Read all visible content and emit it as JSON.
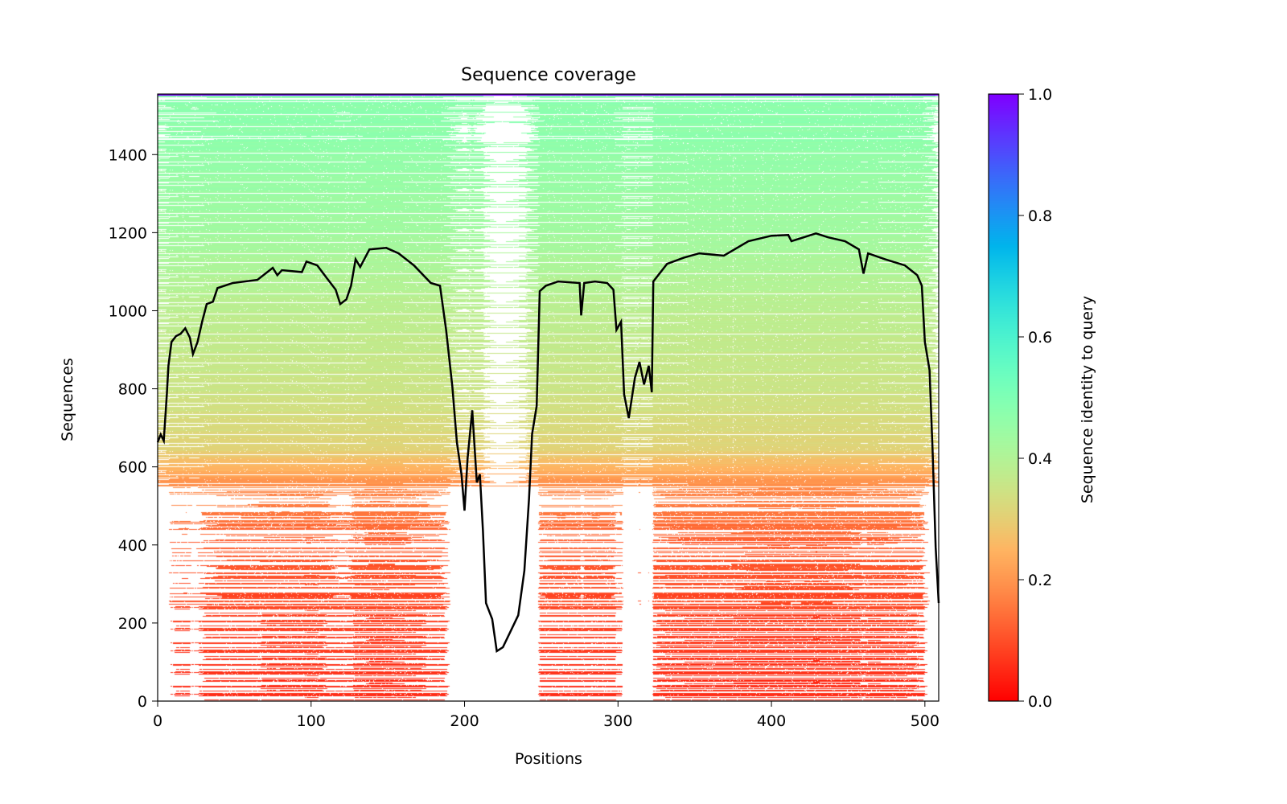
{
  "chart_data": {
    "type": "heatmap",
    "title": "Sequence coverage",
    "xlabel": "Positions",
    "ylabel": "Sequences",
    "xlim": [
      0,
      509
    ],
    "ylim": [
      0,
      1555
    ],
    "xticks": [
      "0",
      "100",
      "200",
      "300",
      "400",
      "500"
    ],
    "yticks": [
      "0",
      "200",
      "400",
      "600",
      "800",
      "1000",
      "1200",
      "1400"
    ],
    "colorbar": {
      "label": "Sequence identity to query",
      "colormap": "rainbow_r",
      "range": [
        0,
        1
      ],
      "ticks": [
        "0.0",
        "0.2",
        "0.4",
        "0.6",
        "0.8",
        "1.0"
      ]
    },
    "identity_profile": {
      "sequence_index": [
        0,
        200,
        400,
        550,
        600,
        650,
        800,
        1000,
        1200,
        1400,
        1554
      ],
      "identity": [
        0.05,
        0.08,
        0.12,
        0.18,
        0.25,
        0.31,
        0.35,
        0.38,
        0.43,
        0.46,
        0.48
      ]
    },
    "coverage_line": {
      "name": "coverage",
      "color": "#000000",
      "x": [
        0,
        2,
        4,
        6,
        7,
        9,
        12,
        15,
        18,
        21,
        23,
        26,
        29,
        32,
        36,
        39,
        49,
        65,
        75,
        78,
        81,
        94,
        97,
        104,
        110,
        116,
        119,
        123,
        126,
        129,
        132,
        138,
        149,
        157,
        167,
        178,
        184,
        188,
        192,
        195,
        198,
        200,
        202,
        205,
        208,
        210,
        212,
        214,
        218,
        221,
        225,
        230,
        235,
        239,
        242,
        244,
        247,
        249,
        253,
        261,
        275,
        276,
        278,
        285,
        293,
        297,
        299,
        302,
        304,
        307,
        311,
        314,
        317,
        320,
        322,
        323,
        332,
        343,
        353,
        369,
        385,
        400,
        411,
        413,
        421,
        429,
        437,
        448,
        457,
        460,
        463,
        474,
        487,
        495,
        498,
        500,
        503,
        505,
        507,
        509
      ],
      "y": [
        663,
        683,
        667,
        786,
        859,
        920,
        935,
        941,
        955,
        931,
        889,
        920,
        972,
        1017,
        1023,
        1058,
        1071,
        1079,
        1110,
        1091,
        1104,
        1099,
        1126,
        1116,
        1085,
        1054,
        1017,
        1029,
        1064,
        1132,
        1112,
        1157,
        1161,
        1147,
        1116,
        1071,
        1064,
        951,
        807,
        663,
        581,
        488,
        622,
        745,
        560,
        581,
        436,
        251,
        210,
        128,
        138,
        179,
        220,
        334,
        519,
        684,
        756,
        1050,
        1064,
        1075,
        1071,
        988,
        1071,
        1075,
        1071,
        1054,
        951,
        972,
        786,
        725,
        828,
        869,
        811,
        859,
        791,
        1075,
        1120,
        1136,
        1147,
        1141,
        1178,
        1192,
        1194,
        1178,
        1188,
        1198,
        1188,
        1178,
        1157,
        1095,
        1147,
        1132,
        1116,
        1091,
        1064,
        920,
        848,
        642,
        395,
        251
      ]
    }
  }
}
